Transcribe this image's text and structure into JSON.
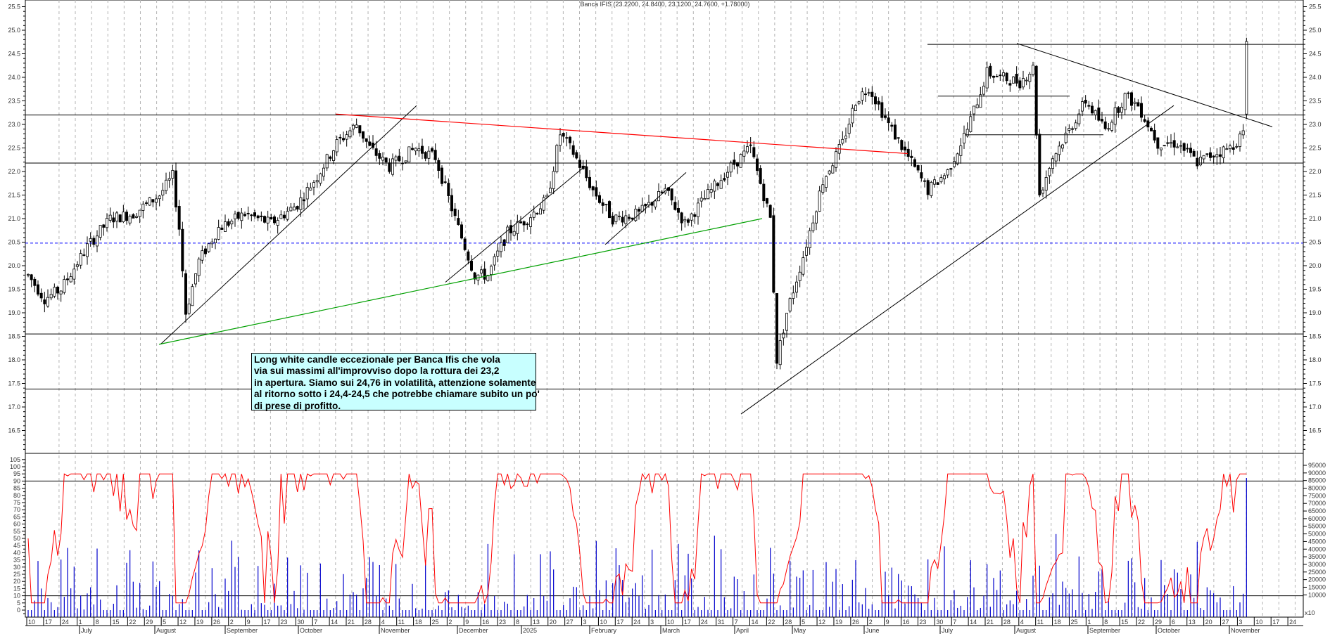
{
  "title": "Banca IFIS (23.2200, 24.8400, 23.1200, 24.7600, +1.78000)",
  "annotation": {
    "lines": [
      "Long white candle eccezionale per Banca Ifis che vola",
      "via sui massimi all'improvviso dopo la rottura dei 23,2",
      "in apertura. Siamo sui 24,76 in volatilità, attenzione solamente",
      "al ritorno sotto i 24,4-24,5 che potrebbe chiamare subito un po'",
      "di prese di profitto."
    ],
    "background": "#c8ffff"
  },
  "colors": {
    "up_candle": "#ffffff",
    "down_candle": "#000000",
    "oscillator": "#ff0000",
    "volume": "#0000cc",
    "red_trendline": "#ff0000",
    "green_trendline": "#00a000",
    "dashed_level": "#0000ff",
    "grid": "#b4b4b4"
  },
  "chart_data": {
    "type": "candlestick",
    "title": "Banca IFIS (23.2200, 24.8400, 23.1200, 24.7600, +1.78000)",
    "last_bar": {
      "open": 23.22,
      "high": 24.84,
      "low": 23.12,
      "close": 24.76,
      "change": 1.78
    },
    "price_axis": {
      "min": 16.0,
      "max": 25.5,
      "ticks": [
        "25.5",
        "25.0",
        "24.5",
        "24.0",
        "23.5",
        "23.0",
        "22.5",
        "22.0",
        "21.5",
        "21.0",
        "20.5",
        "20.0",
        "19.5",
        "19.0",
        "18.5",
        "18.0",
        "17.5",
        "17.0",
        "16.5"
      ]
    },
    "oscillator_axis": {
      "ticks": [
        "105",
        "100",
        "95",
        "90",
        "85",
        "80",
        "75",
        "70",
        "65",
        "60",
        "55",
        "50",
        "45",
        "40",
        "35",
        "30",
        "25",
        "20",
        "15",
        "10",
        "5",
        "0"
      ]
    },
    "volume_axis": {
      "ticks": [
        "95000",
        "90000",
        "85000",
        "80000",
        "75000",
        "70000",
        "65000",
        "60000",
        "55000",
        "50000",
        "45000",
        "40000",
        "35000",
        "30000",
        "25000",
        "20000",
        "15000",
        "10000"
      ],
      "multiplier_label": "x10"
    },
    "horizontal_levels": [
      24.7,
      23.2,
      22.18,
      18.55,
      17.38
    ],
    "dashed_level": 20.48,
    "oscillator_levels": [
      90,
      10
    ],
    "x_day_labels": [
      "10",
      "17",
      "24",
      "1",
      "8",
      "15",
      "22",
      "29",
      "5",
      "12",
      "19",
      "26",
      "2",
      "9",
      "17",
      "23",
      "30",
      "7",
      "14",
      "21",
      "28",
      "4",
      "11",
      "18",
      "25",
      "2",
      "9",
      "16",
      "23",
      "8",
      "13",
      "20",
      "27",
      "3",
      "10",
      "17",
      "24",
      "3",
      "10",
      "17",
      "24",
      "31",
      "7",
      "14",
      "22",
      "28",
      "5",
      "12",
      "19",
      "26",
      "2",
      "9",
      "16",
      "23",
      "30",
      "7",
      "14",
      "21",
      "28",
      "4",
      "11",
      "18",
      "25",
      "1",
      "8",
      "15",
      "22",
      "29",
      "6",
      "13",
      "20",
      "27",
      "3",
      "10",
      "17",
      "24"
    ],
    "x_month_labels": [
      "July",
      "August",
      "September",
      "October",
      "November",
      "December",
      "2025",
      "February",
      "March",
      "April",
      "May",
      "June",
      "July",
      "August",
      "September",
      "October",
      "November"
    ],
    "price_keypoints": [
      [
        0,
        19.8
      ],
      [
        5,
        19.3
      ],
      [
        10,
        19.5
      ],
      [
        18,
        20.4
      ],
      [
        25,
        21.0
      ],
      [
        32,
        21.1
      ],
      [
        40,
        21.5
      ],
      [
        44,
        21.9
      ],
      [
        46,
        20.8
      ],
      [
        48,
        19.0
      ],
      [
        52,
        20.1
      ],
      [
        58,
        20.8
      ],
      [
        66,
        21.1
      ],
      [
        74,
        20.9
      ],
      [
        82,
        21.3
      ],
      [
        88,
        21.9
      ],
      [
        94,
        22.6
      ],
      [
        100,
        23.0
      ],
      [
        104,
        22.5
      ],
      [
        110,
        22.1
      ],
      [
        118,
        22.5
      ],
      [
        124,
        22.3
      ],
      [
        130,
        21.0
      ],
      [
        136,
        19.8
      ],
      [
        140,
        19.8
      ],
      [
        146,
        20.7
      ],
      [
        152,
        21.0
      ],
      [
        158,
        21.4
      ],
      [
        162,
        22.8
      ],
      [
        166,
        22.4
      ],
      [
        172,
        21.6
      ],
      [
        178,
        21.0
      ],
      [
        186,
        21.1
      ],
      [
        194,
        21.6
      ],
      [
        200,
        20.9
      ],
      [
        208,
        21.6
      ],
      [
        214,
        22.1
      ],
      [
        220,
        22.5
      ],
      [
        226,
        21.0
      ],
      [
        228,
        18.0
      ],
      [
        231,
        19.0
      ],
      [
        236,
        20.2
      ],
      [
        242,
        21.8
      ],
      [
        248,
        22.6
      ],
      [
        252,
        23.5
      ],
      [
        256,
        23.8
      ],
      [
        262,
        23.0
      ],
      [
        268,
        22.3
      ],
      [
        274,
        21.6
      ],
      [
        280,
        22.0
      ],
      [
        286,
        22.9
      ],
      [
        292,
        24.1
      ],
      [
        296,
        24.0
      ],
      [
        302,
        23.9
      ],
      [
        306,
        24.2
      ],
      [
        308,
        21.5
      ],
      [
        312,
        22.3
      ],
      [
        318,
        23.0
      ],
      [
        322,
        23.5
      ],
      [
        328,
        22.9
      ],
      [
        334,
        23.6
      ],
      [
        338,
        23.4
      ],
      [
        344,
        22.6
      ],
      [
        350,
        22.6
      ],
      [
        356,
        22.2
      ],
      [
        362,
        22.4
      ],
      [
        366,
        22.5
      ],
      [
        370,
        22.8
      ],
      [
        371,
        24.76
      ]
    ],
    "notes": "Daily candlestick chart with oscillator (red, 0-100 scale) and volume histogram (blue) in lower panel; trendlines drawn in black, red and green."
  }
}
